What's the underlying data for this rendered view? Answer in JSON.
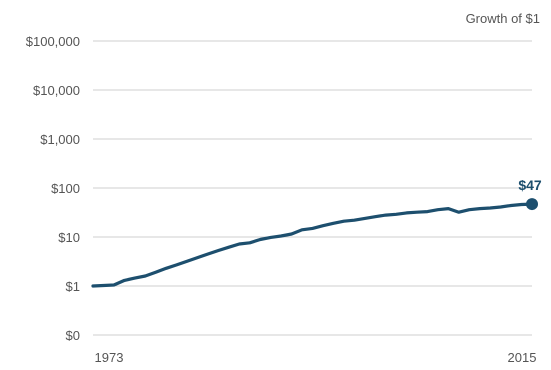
{
  "chart_data": {
    "type": "line",
    "title": "Growth of $1",
    "xlabel": "",
    "ylabel": "",
    "scale": "log",
    "xlim": [
      1973,
      2015
    ],
    "ylim": [
      0.1,
      100000
    ],
    "grid": true,
    "x_tick_labels": [
      "1973",
      "2015"
    ],
    "y_tick_labels": [
      {
        "value": 100000,
        "label": "$100,000"
      },
      {
        "value": 10000,
        "label": "$10,000"
      },
      {
        "value": 1000,
        "label": "$1,000"
      },
      {
        "value": 100,
        "label": "$100"
      },
      {
        "value": 10,
        "label": "$10"
      },
      {
        "value": 1,
        "label": "$1"
      },
      {
        "value": 0.1,
        "label": "$0"
      }
    ],
    "series": [
      {
        "x": [
          1973,
          1975,
          1976,
          1977,
          1978,
          1979,
          1980,
          1981,
          1982,
          1983,
          1984,
          1985,
          1986,
          1987,
          1988,
          1989,
          1990,
          1991,
          1992,
          1993,
          1994,
          1995,
          1996,
          1997,
          1998,
          1999,
          2000,
          2001,
          2002,
          2003,
          2004,
          2005,
          2006,
          2007,
          2008,
          2009,
          2010,
          2011,
          2012,
          2013,
          2014,
          2015
        ],
        "values": [
          1,
          1.05,
          1.3,
          1.45,
          1.6,
          1.9,
          2.3,
          2.7,
          3.2,
          3.8,
          4.5,
          5.3,
          6.2,
          7.2,
          7.6,
          8.9,
          9.8,
          10.5,
          11.5,
          14,
          15,
          17,
          19,
          21,
          22,
          24,
          26,
          28,
          29,
          31,
          32,
          33,
          36,
          38,
          32,
          36,
          38,
          39,
          41,
          44,
          46,
          47
        ]
      }
    ],
    "end_label": "$47",
    "colors": {
      "line": "#1d4f6e",
      "grid": "#cfcfcf",
      "text": "#555555"
    }
  }
}
